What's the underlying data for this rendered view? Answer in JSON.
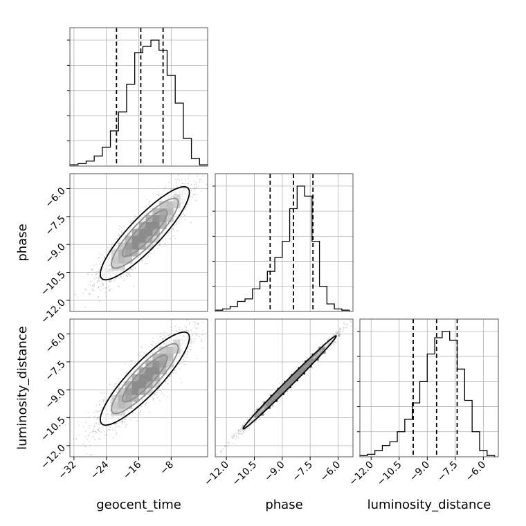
{
  "chart_data": {
    "type": "corner",
    "parameters": [
      "geocent_time",
      "phase",
      "luminosity_distance"
    ],
    "grid": true,
    "ranges": {
      "geocent_time": [
        -33,
        1
      ],
      "phase": [
        -12.6,
        -5.2
      ],
      "luminosity_distance": [
        -12.6,
        -5.2
      ]
    },
    "ticks": {
      "geocent_time": [
        -32,
        -24,
        -16,
        -8
      ],
      "phase": [
        -12.0,
        -10.5,
        -9.0,
        -7.5,
        -6.0
      ],
      "luminosity_distance": [
        -12.0,
        -10.5,
        -9.0,
        -7.5,
        -6.0
      ]
    },
    "tick_labels": {
      "geocent_time": [
        "−32",
        "−24",
        "−16",
        "−8"
      ],
      "phase": [
        "−12.0",
        "−10.5",
        "−9.0",
        "−7.5",
        "−6.0"
      ],
      "luminosity_distance": [
        "−12.0",
        "−10.5",
        "−9.0",
        "−7.5",
        "−6.0"
      ]
    },
    "marginals": [
      {
        "parameter": "geocent_time",
        "quantiles": [
          -21.5,
          -15.5,
          -10.0
        ],
        "bin_edges": [
          -33,
          -31,
          -29,
          -27,
          -25,
          -23,
          -21,
          -19,
          -17,
          -15,
          -13,
          -11,
          -9,
          -7,
          -5,
          -3,
          -1,
          1
        ],
        "counts": [
          0.01,
          0.02,
          0.04,
          0.08,
          0.15,
          0.28,
          0.43,
          0.65,
          0.9,
          0.95,
          1.0,
          0.92,
          0.72,
          0.5,
          0.22,
          0.06,
          0.01
        ]
      },
      {
        "parameter": "phase",
        "quantiles": [
          -9.65,
          -8.4,
          -7.35
        ],
        "bin_edges": [
          -12.6,
          -12.2,
          -11.8,
          -11.4,
          -11.0,
          -10.6,
          -10.2,
          -9.8,
          -9.4,
          -9.0,
          -8.6,
          -8.2,
          -7.8,
          -7.4,
          -7.0,
          -6.6,
          -6.2,
          -5.8,
          -5.4
        ],
        "counts": [
          0.01,
          0.02,
          0.04,
          0.08,
          0.1,
          0.18,
          0.24,
          0.32,
          0.43,
          0.56,
          0.82,
          1.0,
          0.92,
          0.56,
          0.2,
          0.06,
          0.02,
          0.01
        ]
      },
      {
        "parameter": "luminosity_distance",
        "quantiles": [
          -9.75,
          -8.5,
          -7.4
        ],
        "bin_edges": [
          -12.6,
          -12.2,
          -11.8,
          -11.4,
          -11.0,
          -10.6,
          -10.2,
          -9.8,
          -9.4,
          -9.0,
          -8.6,
          -8.2,
          -7.8,
          -7.4,
          -7.0,
          -6.6,
          -6.2,
          -5.8,
          -5.4
        ],
        "counts": [
          0.01,
          0.02,
          0.05,
          0.09,
          0.12,
          0.2,
          0.3,
          0.43,
          0.6,
          0.82,
          0.95,
          1.0,
          0.93,
          0.7,
          0.45,
          0.2,
          0.05,
          0.01
        ]
      }
    ],
    "joints": [
      {
        "x": "geocent_time",
        "y": "phase",
        "mean": [
          -14.5,
          -8.4
        ],
        "sd": [
          5.5,
          1.25
        ],
        "corr": 0.88,
        "contour_levels": [
          0.5,
          1.0,
          1.5,
          2.0
        ]
      },
      {
        "x": "geocent_time",
        "y": "luminosity_distance",
        "mean": [
          -14.5,
          -8.4
        ],
        "sd": [
          5.5,
          1.25
        ],
        "corr": 0.88,
        "contour_levels": [
          0.5,
          1.0,
          1.5,
          2.0
        ]
      },
      {
        "x": "phase",
        "y": "luminosity_distance",
        "mean": [
          -8.6,
          -8.6
        ],
        "sd": [
          1.25,
          1.25
        ],
        "corr": 0.995,
        "contour_levels": [
          0.5,
          1.0,
          1.5,
          2.0
        ]
      }
    ]
  }
}
